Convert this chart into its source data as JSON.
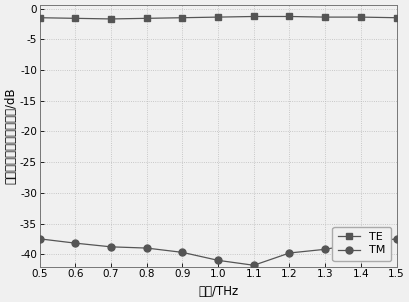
{
  "x": [
    0.5,
    0.6,
    0.7,
    0.8,
    0.9,
    1.0,
    1.1,
    1.2,
    1.3,
    1.4,
    1.5
  ],
  "TE_y": [
    -1.5,
    -1.6,
    -1.7,
    -1.6,
    -1.5,
    -1.4,
    -1.3,
    -1.3,
    -1.4,
    -1.4,
    -1.5
  ],
  "TM_y": [
    -37.5,
    -38.2,
    -38.8,
    -39.0,
    -39.7,
    -41.0,
    -41.8,
    -39.8,
    -39.2,
    -38.2,
    -37.5
  ],
  "TE_color": "#555555",
  "TM_color": "#555555",
  "line_color": "#aaaaaa",
  "marker_TE": "s",
  "marker_TM": "o",
  "xlabel": "频率/THz",
  "ylabel": "第二信号输出端输出功率/dB",
  "xlim": [
    0.5,
    1.5
  ],
  "ylim": [
    -42,
    0.5
  ],
  "yticks": [
    0,
    -5,
    -10,
    -15,
    -20,
    -25,
    -30,
    -35,
    -40
  ],
  "xticks": [
    0.5,
    0.6,
    0.7,
    0.8,
    0.9,
    1.0,
    1.1,
    1.2,
    1.3,
    1.4,
    1.5
  ],
  "xtick_labels": [
    "0.5",
    "0.6",
    "0.7",
    "0.8",
    "0.9",
    "1.0",
    "1.1",
    "1.2",
    "1.3",
    "1.4",
    "1.5"
  ],
  "legend_labels": [
    "TE",
    "TM"
  ],
  "background_color": "#f0f0f0",
  "plot_bg_color": "#f0f0f0",
  "grid_color": "#bbbbbb",
  "tick_fontsize": 7.5,
  "label_fontsize": 8.5,
  "legend_fontsize": 8,
  "marker_size": 5,
  "linewidth": 0.9,
  "legend_loc": "lower right"
}
